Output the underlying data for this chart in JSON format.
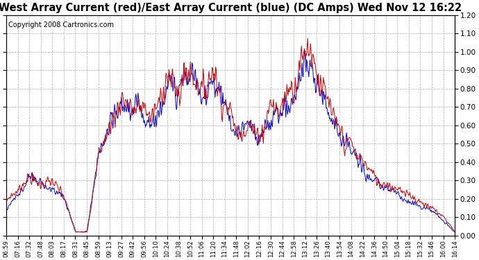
{
  "title": "West Array Current (red)/East Array Current (blue) (DC Amps) Wed Nov 12 16:22",
  "copyright": "Copyright 2008 Cartronics.com",
  "ylim": [
    0.0,
    1.2
  ],
  "yticks": [
    0.0,
    0.1,
    0.2,
    0.3,
    0.4,
    0.5,
    0.6,
    0.7,
    0.8,
    0.9,
    1.0,
    1.1,
    1.2
  ],
  "x_labels": [
    "06:59",
    "07:16",
    "07:32",
    "07:48",
    "08:03",
    "08:17",
    "08:31",
    "08:45",
    "08:59",
    "09:13",
    "09:27",
    "09:42",
    "09:56",
    "10:10",
    "10:24",
    "10:38",
    "10:52",
    "11:06",
    "11:20",
    "11:34",
    "11:48",
    "12:02",
    "12:16",
    "12:30",
    "12:44",
    "12:58",
    "13:12",
    "13:26",
    "13:40",
    "13:54",
    "14:08",
    "14:22",
    "14:36",
    "14:50",
    "15:04",
    "15:18",
    "15:32",
    "15:46",
    "16:00",
    "16:14"
  ],
  "background_color": "#ffffff",
  "plot_bg_color": "#ffffff",
  "grid_color": "#aaaaaa",
  "line_red": "#cc0000",
  "line_blue": "#0000cc",
  "title_fontsize": 10.5,
  "copyright_fontsize": 7,
  "red_key": [
    0.18,
    0.25,
    0.32,
    0.3,
    0.28,
    0.22,
    0.02,
    0.02,
    0.45,
    0.6,
    0.75,
    0.72,
    0.68,
    0.65,
    0.88,
    0.82,
    0.93,
    0.78,
    0.88,
    0.72,
    0.58,
    0.62,
    0.55,
    0.68,
    0.72,
    0.78,
    1.05,
    0.88,
    0.72,
    0.58,
    0.48,
    0.38,
    0.32,
    0.28,
    0.25,
    0.22,
    0.18,
    0.15,
    0.1,
    0.02
  ],
  "blue_key": [
    0.15,
    0.22,
    0.3,
    0.28,
    0.26,
    0.2,
    0.02,
    0.02,
    0.42,
    0.58,
    0.72,
    0.7,
    0.65,
    0.62,
    0.85,
    0.8,
    0.9,
    0.76,
    0.85,
    0.7,
    0.55,
    0.6,
    0.52,
    0.65,
    0.7,
    0.75,
    0.98,
    0.85,
    0.68,
    0.55,
    0.45,
    0.36,
    0.3,
    0.26,
    0.22,
    0.2,
    0.16,
    0.13,
    0.08,
    0.02
  ]
}
